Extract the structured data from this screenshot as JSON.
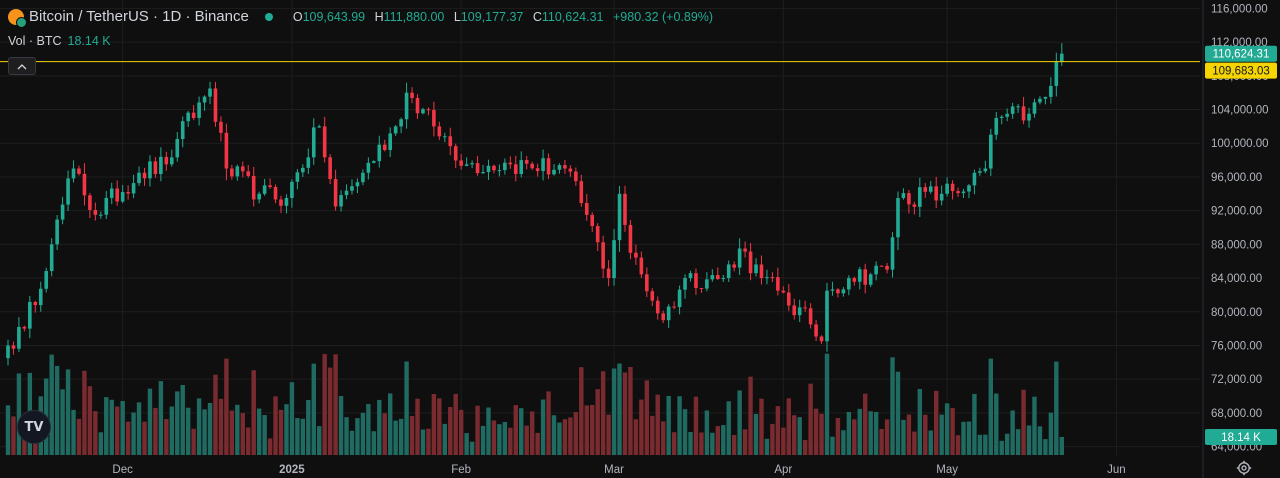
{
  "header": {
    "symbol_title": "Bitcoin / TetherUS · 1D · Binance",
    "ohlc": {
      "open_label": "O",
      "open": "109,643.99",
      "high_label": "H",
      "high": "111,880.00",
      "low_label": "L",
      "low": "109,177.37",
      "close_label": "C",
      "close": "110,624.31",
      "change": "+980.32 (+0.89%)"
    },
    "volume_label": "Vol · BTC",
    "volume_value": "18.14 K"
  },
  "badges": {
    "last_price": "110,624.31",
    "line_price": "109,683.03",
    "volume": "18.14 K"
  },
  "icons": {
    "coin": "bitcoin-tether-coin-icon",
    "collapse": "chevron-up-icon",
    "logo": "tradingview-logo-icon",
    "settings": "gear-icon"
  },
  "logo_text": "TV",
  "colors": {
    "background": "#0f0f0f",
    "up": "#22ab94",
    "down": "#f23645",
    "up_volume": "#1f6b62",
    "down_volume": "#7a2b30",
    "price_line": "#f5d400",
    "last_price_badge": "#22ab94",
    "line_price_badge": "#f5d400",
    "grid": "#1e1e1e",
    "axis_text": "#b2b5be"
  },
  "chart_data": {
    "type": "candlestick",
    "title": "Bitcoin / TetherUS · 1D · Binance",
    "x_axis": {
      "ticks": [
        "Dec",
        "2025",
        "Feb",
        "Mar",
        "Apr",
        "May",
        "Jun"
      ],
      "bold_ticks": [
        "2025"
      ]
    },
    "y_axis": {
      "ticks": [
        "116,000.00",
        "112,000.00",
        "108,000.00",
        "104,000.00",
        "100,000.00",
        "96,000.00",
        "92,000.00",
        "88,000.00",
        "84,000.00",
        "80,000.00",
        "76,000.00",
        "72,000.00",
        "68,000.00",
        "64,000.00"
      ],
      "range": [
        63000,
        117000
      ]
    },
    "horizontal_line": 109683.03,
    "grid": true,
    "series": [
      {
        "name": "Price",
        "anchors": [
          {
            "date": "Nov 10",
            "close": 76000
          },
          {
            "date": "Nov 13",
            "close": 78000
          },
          {
            "date": "Nov 18",
            "close": 88000
          },
          {
            "date": "Nov 22",
            "close": 97000
          },
          {
            "date": "Nov 26",
            "close": 91500
          },
          {
            "date": "Dec 4",
            "close": 96500
          },
          {
            "date": "Dec 9",
            "close": 97500
          },
          {
            "date": "Dec 11",
            "close": 100500
          },
          {
            "date": "Dec 17",
            "close": 106500
          },
          {
            "date": "Dec 20",
            "close": 97000
          },
          {
            "date": "Dec 26",
            "close": 94000
          },
          {
            "date": "Dec 31",
            "close": 93500
          },
          {
            "date": "Jan 6",
            "close": 102000
          },
          {
            "date": "Jan 9",
            "close": 92500
          },
          {
            "date": "Jan 14",
            "close": 96500
          },
          {
            "date": "Jan 20",
            "close": 102000
          },
          {
            "date": "Jan 22",
            "close": 106000
          },
          {
            "date": "Jan 27",
            "close": 102000
          },
          {
            "date": "Feb 2",
            "close": 97500
          },
          {
            "date": "Feb 10",
            "close": 97500
          },
          {
            "date": "Feb 20",
            "close": 97000
          },
          {
            "date": "Feb 24",
            "close": 91500
          },
          {
            "date": "Feb 28",
            "close": 84000
          },
          {
            "date": "Mar 2",
            "close": 94000
          },
          {
            "date": "Mar 4",
            "close": 87000
          },
          {
            "date": "Mar 10",
            "close": 79000
          },
          {
            "date": "Mar 14",
            "close": 84000
          },
          {
            "date": "Mar 21",
            "close": 84000
          },
          {
            "date": "Mar 24",
            "close": 87500
          },
          {
            "date": "Mar 28",
            "close": 84000
          },
          {
            "date": "Mar 31",
            "close": 82500
          },
          {
            "date": "Apr 6",
            "close": 78500
          },
          {
            "date": "Apr 8",
            "close": 76500
          },
          {
            "date": "Apr 9",
            "close": 82500
          },
          {
            "date": "Apr 13",
            "close": 84000
          },
          {
            "date": "Apr 20",
            "close": 85000
          },
          {
            "date": "Apr 22",
            "close": 93500
          },
          {
            "date": "Apr 30",
            "close": 94000
          },
          {
            "date": "May 5",
            "close": 95000
          },
          {
            "date": "May 8",
            "close": 97000
          },
          {
            "date": "May 10",
            "close": 103000
          },
          {
            "date": "May 16",
            "close": 103500
          },
          {
            "date": "May 19",
            "close": 105500
          },
          {
            "date": "May 20",
            "close": 106800
          },
          {
            "date": "May 21",
            "close": 109643.99
          },
          {
            "date": "May 22",
            "close": 110624.31
          }
        ]
      },
      {
        "name": "Vol · BTC",
        "last_value": "18.14 K"
      }
    ]
  }
}
